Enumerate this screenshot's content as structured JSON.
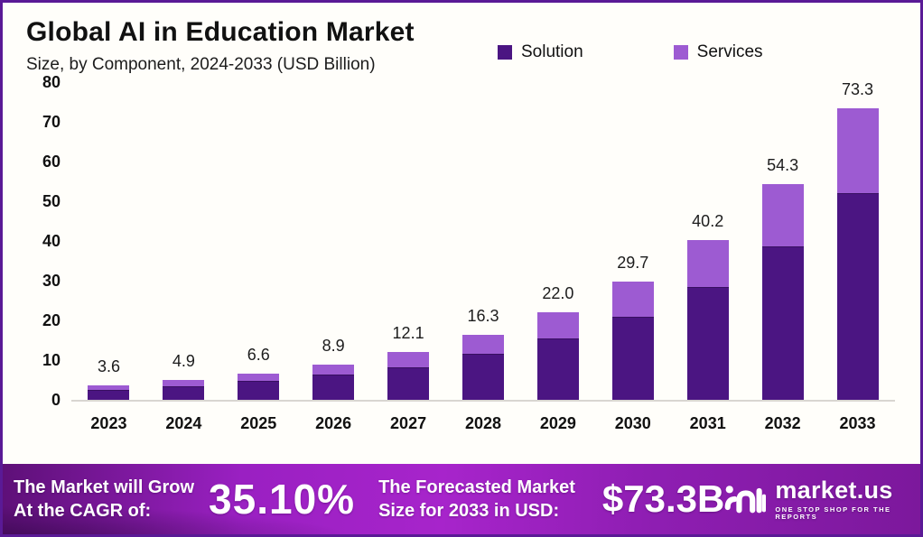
{
  "header": {
    "title": "Global AI in Education Market",
    "subtitle": "Size, by Component, 2024-2033 (USD Billion)"
  },
  "legend": [
    {
      "label": "Solution",
      "color": "#4b1582"
    },
    {
      "label": "Services",
      "color": "#9d5bd2"
    }
  ],
  "chart_data": {
    "type": "bar",
    "stacked": true,
    "title": "Global AI in Education Market",
    "subtitle": "Size, by Component, 2024-2033 (USD Billion)",
    "categories": [
      "2023",
      "2024",
      "2025",
      "2026",
      "2027",
      "2028",
      "2029",
      "2030",
      "2031",
      "2032",
      "2033"
    ],
    "series": [
      {
        "name": "Solution",
        "color": "#4b1582",
        "values": [
          2.6,
          3.5,
          4.7,
          6.3,
          8.2,
          11.5,
          15.5,
          21.0,
          28.4,
          38.6,
          52.0
        ]
      },
      {
        "name": "Services",
        "color": "#9d5bd2",
        "values": [
          1.0,
          1.4,
          1.9,
          2.6,
          3.9,
          4.8,
          6.5,
          8.7,
          11.8,
          15.7,
          21.3
        ]
      }
    ],
    "totals": [
      3.6,
      4.9,
      6.6,
      8.9,
      12.1,
      16.3,
      22.0,
      29.7,
      40.2,
      54.3,
      73.3
    ],
    "total_labels": [
      "3.6",
      "4.9",
      "6.6",
      "8.9",
      "12.1",
      "16.3",
      "22.0",
      "29.7",
      "40.2",
      "54.3",
      "73.3"
    ],
    "xlabel": "",
    "ylabel": "",
    "ylim": [
      0,
      80
    ],
    "yticks": [
      0,
      10,
      20,
      30,
      40,
      50,
      60,
      70,
      80
    ],
    "grid": false,
    "legend_position": "top"
  },
  "footer": {
    "grow_line1": "The Market will Grow",
    "grow_line2": "At the CAGR of:",
    "cagr": "35.10%",
    "forecast_line1": "The Forecasted Market",
    "forecast_line2": "Size for 2033 in USD:",
    "forecast_value": "$73.3B",
    "brand": "market.us",
    "brand_tagline": "ONE STOP SHOP FOR THE REPORTS"
  },
  "colors": {
    "frame_border": "#5a1a96",
    "background": "#fffefa",
    "solution": "#4b1582",
    "services": "#9d5bd2",
    "baseline": "#d9d6d1",
    "banner_left": "#5e1078",
    "banner_mid": "#a724cb",
    "banner_right": "#7c189c"
  }
}
